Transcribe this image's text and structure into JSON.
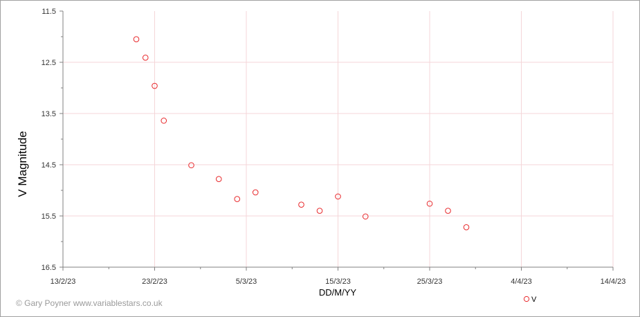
{
  "chart_data": {
    "type": "scatter",
    "xlabel": "DD/M/YY",
    "ylabel": "V Magnitude",
    "x_range": [
      "2023-02-13",
      "2023-04-14"
    ],
    "x_tick_labels": [
      "13/2/23",
      "23/2/23",
      "5/3/23",
      "15/3/23",
      "25/3/23",
      "4/4/23",
      "14/4/23"
    ],
    "ylim": [
      11.5,
      16.5
    ],
    "y_inverted": true,
    "y_tick_labels": [
      "11.5",
      "12.5",
      "13.5",
      "14.5",
      "15.5",
      "16.5"
    ],
    "grid": true,
    "legend_position": "bottom-right",
    "series": [
      {
        "name": "V",
        "color": "#e8282b",
        "marker": "open-circle",
        "points": [
          {
            "x": "2023-02-21",
            "y": 12.05
          },
          {
            "x": "2023-02-22",
            "y": 12.41
          },
          {
            "x": "2023-02-23",
            "y": 12.96
          },
          {
            "x": "2023-02-24",
            "y": 13.64
          },
          {
            "x": "2023-02-27",
            "y": 14.51
          },
          {
            "x": "2023-03-02",
            "y": 14.78
          },
          {
            "x": "2023-03-04",
            "y": 15.17
          },
          {
            "x": "2023-03-06",
            "y": 15.04
          },
          {
            "x": "2023-03-11",
            "y": 15.28
          },
          {
            "x": "2023-03-13",
            "y": 15.4
          },
          {
            "x": "2023-03-15",
            "y": 15.12
          },
          {
            "x": "2023-03-18",
            "y": 15.51
          },
          {
            "x": "2023-03-25",
            "y": 15.26
          },
          {
            "x": "2023-03-27",
            "y": 15.4
          },
          {
            "x": "2023-03-29",
            "y": 15.72
          }
        ]
      }
    ]
  },
  "credit": "© Gary Poyner www.variablestars.co.uk",
  "colors": {
    "axis": "#808080",
    "grid": "#f4d6d8",
    "marker": "#e8282b",
    "credit": "#9a9a9a"
  }
}
